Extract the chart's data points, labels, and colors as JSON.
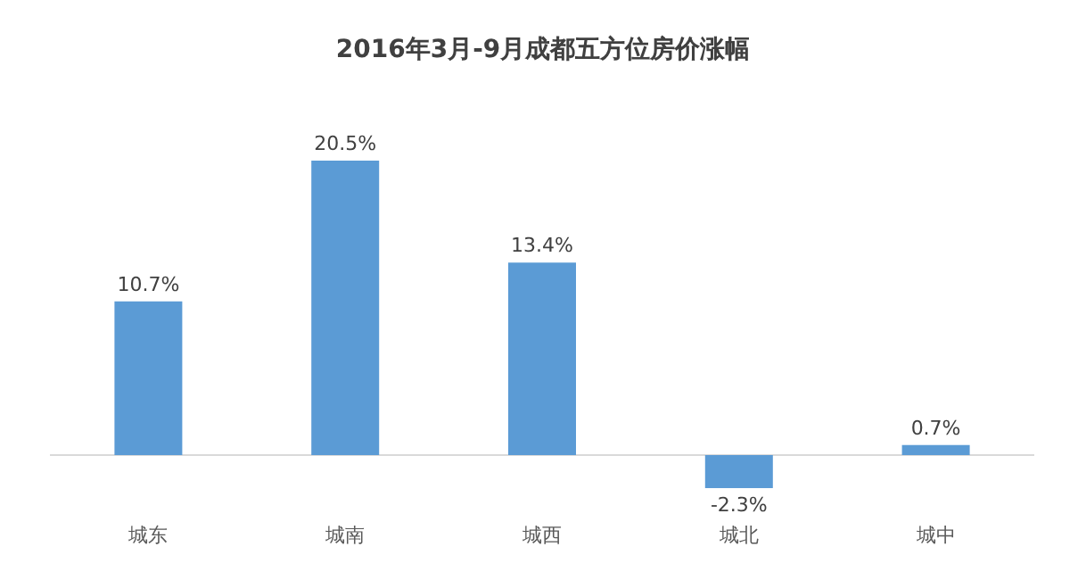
{
  "chart_data": {
    "type": "bar",
    "title": "2016年3月-9月成都五方位房价涨幅",
    "categories": [
      "城东",
      "城南",
      "城西",
      "城北",
      "城中"
    ],
    "values": [
      10.7,
      20.5,
      13.4,
      -2.3,
      0.7
    ],
    "value_labels": [
      "10.7%",
      "20.5%",
      "13.4%",
      "-2.3%",
      "0.7%"
    ],
    "color": "#5b9bd5"
  }
}
